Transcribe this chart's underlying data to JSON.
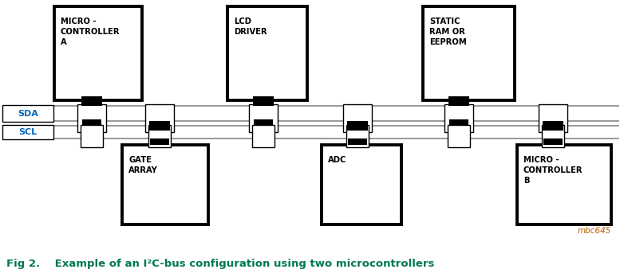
{
  "bg_color": "#ffffff",
  "line_color": "#000000",
  "bus_color": "#888888",
  "text_color_black": "#000000",
  "text_color_orange": "#b85c00",
  "text_color_blue": "#0066bb",
  "text_color_teal": "#007755",
  "caption": "Fig 2.    Example of an I²C-bus configuration using two microcontrollers",
  "watermark": "mbc645",
  "figsize": [
    7.82,
    3.48
  ],
  "dpi": 100,
  "sda_label": "SDA",
  "scl_label": "SCL"
}
